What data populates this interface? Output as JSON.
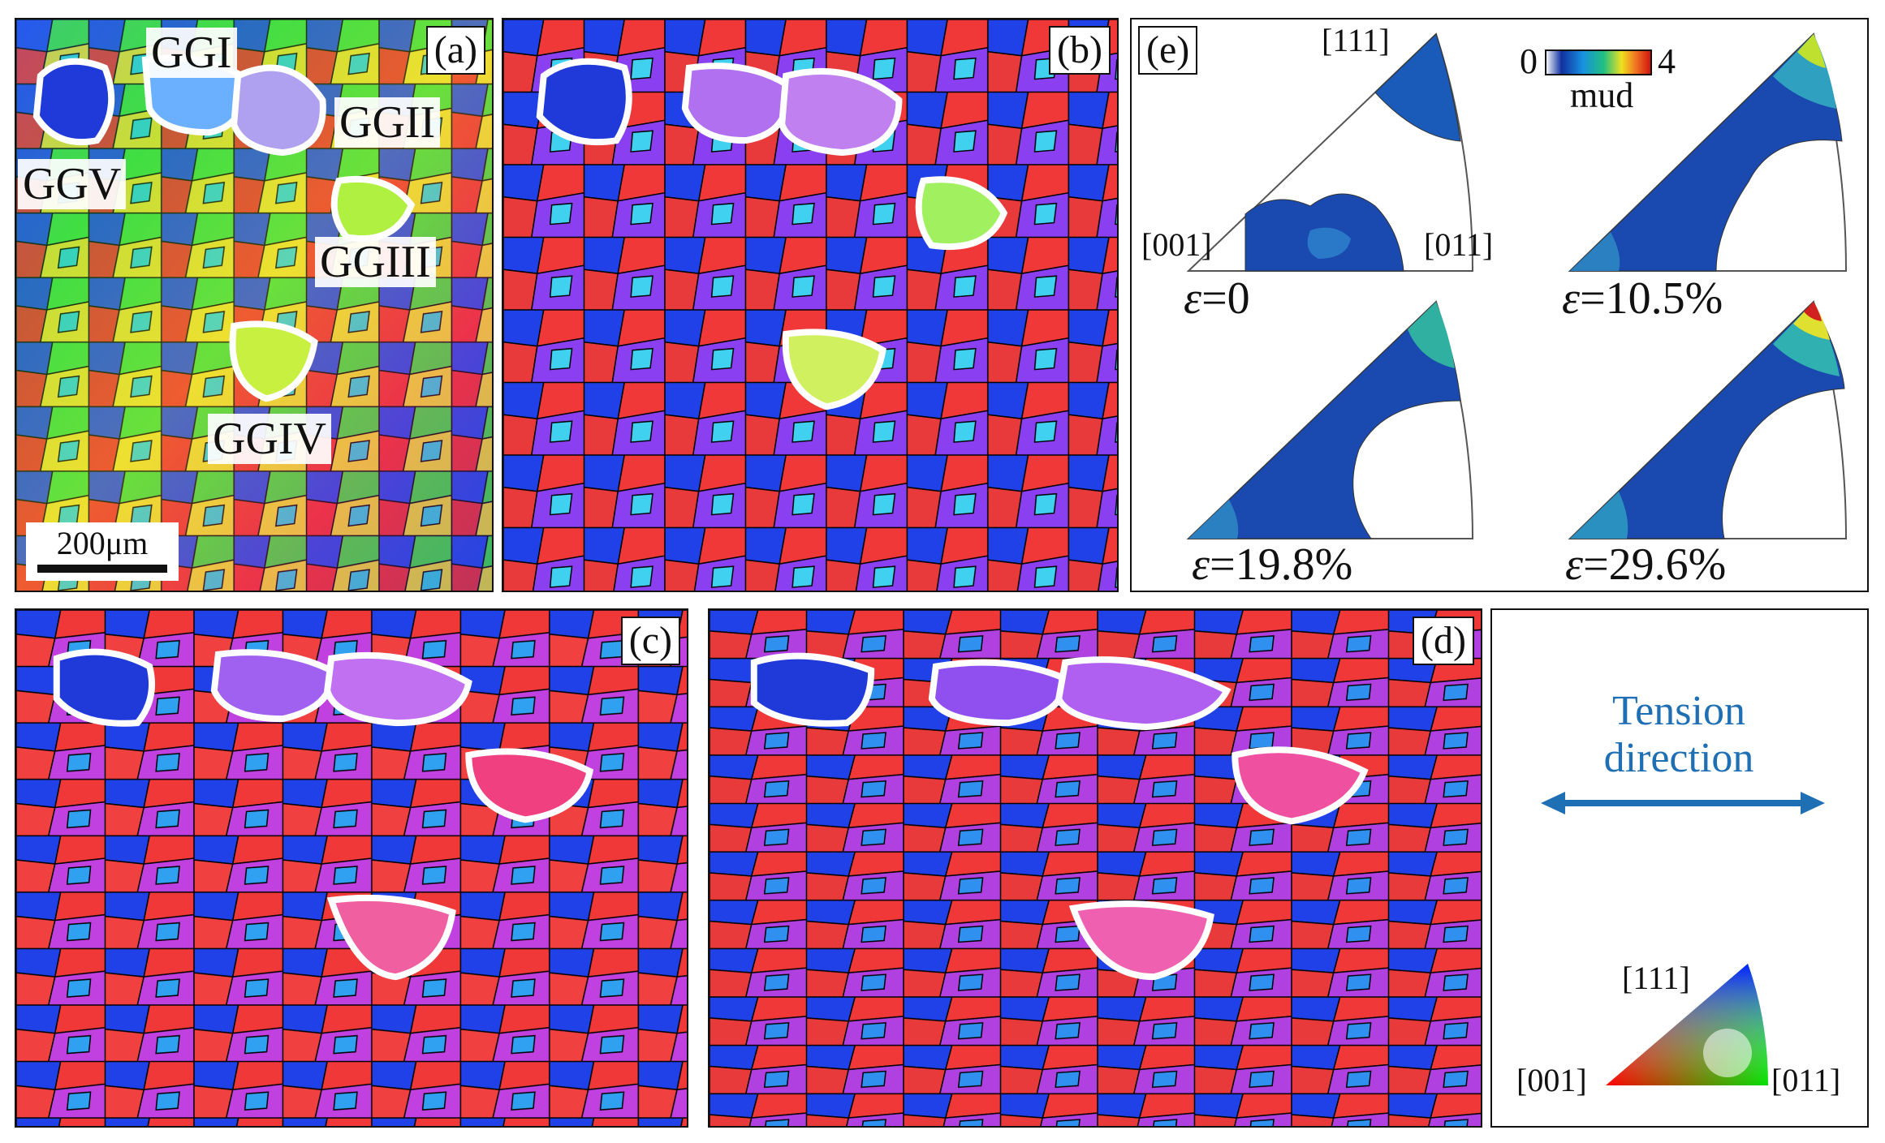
{
  "panels": {
    "a": {
      "label": "(a)"
    },
    "b": {
      "label": "(b)"
    },
    "c": {
      "label": "(c)"
    },
    "d": {
      "label": "(d)"
    },
    "e": {
      "label": "(e)"
    }
  },
  "grain_labels": {
    "ggi": "GGI",
    "ggii": "GGII",
    "ggiii": "GGIII",
    "ggiv": "GGIV",
    "ggv": "GGV"
  },
  "scale_bar": {
    "text": "200μm"
  },
  "ipf_plots": {
    "dir_111": "[111]",
    "dir_001": "[001]",
    "dir_011": "[011]",
    "colorbar_min": "0",
    "colorbar_max": "4",
    "colorbar_unit": "mud",
    "strains": [
      {
        "symbol": "ε",
        "value": "=0"
      },
      {
        "symbol": "ε",
        "value": "=10.5%"
      },
      {
        "symbol": "ε",
        "value": "=19.8%"
      },
      {
        "symbol": "ε",
        "value": "=29.6%"
      }
    ]
  },
  "tension": {
    "line1": "Tension",
    "line2": "direction"
  },
  "color_key": {
    "dir_111": "[111]",
    "dir_001": "[001]",
    "dir_011": "[011]"
  },
  "colors": {
    "tension_blue": "#1f6fb5"
  }
}
